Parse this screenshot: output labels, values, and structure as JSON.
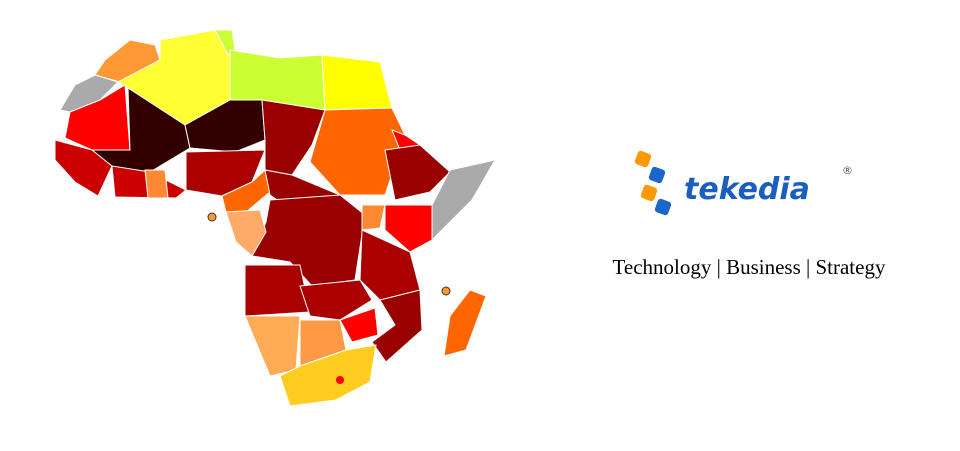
{
  "logo": {
    "name": "tekedia",
    "registered": "®"
  },
  "tagline": "Technology | Business | Strategy"
}
